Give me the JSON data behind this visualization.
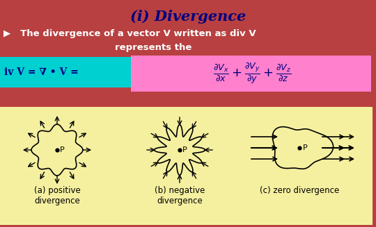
{
  "title": "(i) Divergence",
  "title_color": "#000080",
  "bg_color": "#b84040",
  "bottom_bg_color": "#f5f0a0",
  "cyan_box_color": "#00d0d0",
  "pink_box_color": "#ff80cc",
  "line1": "▶   The divergence of a vector V written as div V",
  "line2": "represents the",
  "cyan_text": "iv V = ∇ • V =",
  "formula": "$\\frac{\\partial V_x}{\\partial x} + \\frac{\\partial V_y}{\\partial y} + \\frac{\\partial V_z}{\\partial z}$",
  "label_a": "(a) positive\ndivergence",
  "label_b": "(b) negative\ndivergence",
  "label_c": "(c) zero divergence",
  "fig_width": 5.4,
  "fig_height": 3.27,
  "dpi": 100
}
